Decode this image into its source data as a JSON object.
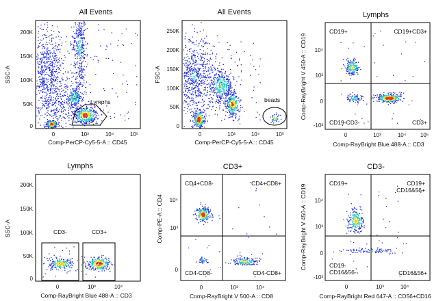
{
  "plots": [
    {
      "id": "p1",
      "title": "All Events",
      "xlabel": "Comp-PerCP-Cy5-5-A :: CD45",
      "ylabel": "SSC-A",
      "x_ticks": [
        "0",
        "10³",
        "10⁴",
        "10⁵"
      ],
      "y_ticks": [
        "0",
        "50K",
        "100K",
        "150K",
        "200K"
      ],
      "gate": {
        "type": "polygon",
        "label": "Lymphs"
      }
    },
    {
      "id": "p2",
      "title": "All Events",
      "xlabel": "Comp-PerCP-Cy5-5-A :: CD45",
      "ylabel": "FSC-A",
      "x_ticks": [
        "0",
        "10³",
        "10⁴",
        "10⁵"
      ],
      "y_ticks": [
        "0",
        "50K",
        "100K",
        "150K",
        "200K",
        "250K"
      ],
      "gate": {
        "type": "ellipse",
        "label": "beads"
      }
    },
    {
      "id": "p3",
      "title": "Lymphs",
      "xlabel": "Comp-RayBright Blue 488-A :: CD3",
      "ylabel": "Comp-RayBright V 450-A :: CD19",
      "x_ticks": [
        "0",
        "10³",
        "10⁴",
        "10⁵"
      ],
      "y_ticks": [
        "-10³",
        "0",
        "10³",
        "10⁴"
      ],
      "quadrants": {
        "ul": "CD19+",
        "ur": "CD19+CD3+",
        "ll": "CD19-CD3-",
        "lr": "CD3+"
      }
    },
    {
      "id": "p4",
      "title": "Lymphs",
      "xlabel": "Comp-RayBright Blue 488-A :: CD3",
      "ylabel": "SSC-A",
      "x_ticks": [
        "0",
        "10³",
        "10⁴"
      ],
      "y_ticks": [
        "0",
        "50K",
        "100K",
        "150K",
        "200K"
      ],
      "gates": [
        {
          "label": "CD3-"
        },
        {
          "label": "CD3+"
        }
      ]
    },
    {
      "id": "p5",
      "title": "CD3+",
      "xlabel": "Comp-RayBright V 500-A :: CD8",
      "ylabel": "Comp-PE-A :: CD4",
      "x_ticks": [
        "0",
        "10³",
        "10⁴"
      ],
      "y_ticks": [
        "0",
        "10³",
        "10⁴"
      ],
      "quadrants": {
        "ul": "CD4+CD8-",
        "ur": "CD4+CD8+",
        "ll": "CD4-CD8-",
        "lr": "CD4-CD8+"
      }
    },
    {
      "id": "p6",
      "title": "CD3-",
      "xlabel": "Comp-RayBright Red 647-A :: CD56+CD16",
      "ylabel": "Comp-RayBright V 450-A :: CD19",
      "x_ticks": [
        "0",
        "10³",
        "10⁴"
      ],
      "y_ticks": [
        "-10³",
        "0",
        "10³",
        "10⁴"
      ],
      "quadrants": {
        "ul": "CD19+",
        "ur": "CD19+\nCD16&56+",
        "ll": "CD19-\nCD16&56-",
        "lr": "CD16&56+"
      }
    }
  ],
  "colors": {
    "low": "#1f2bd6",
    "mid": "#21c9c9",
    "high": "#f2e21a",
    "peak": "#e4321b"
  }
}
